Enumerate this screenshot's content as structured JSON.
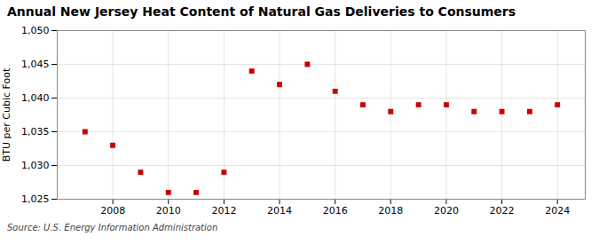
{
  "chart_data": {
    "type": "scatter",
    "title": "Annual New Jersey Heat Content of Natural Gas Deliveries to Consumers",
    "ylabel": "BTU per Cubic Foot",
    "annotations": [
      "Source: U.S. Energy Information Administration"
    ],
    "x": [
      2007,
      2008,
      2009,
      2010,
      2011,
      2012,
      2013,
      2014,
      2015,
      2016,
      2017,
      2018,
      2019,
      2020,
      2021,
      2022,
      2023,
      2024
    ],
    "values": [
      1035,
      1033,
      1029,
      1026,
      1026,
      1029,
      1044,
      1042,
      1045,
      1041,
      1039,
      1038,
      1039,
      1039,
      1038,
      1038,
      1038,
      1039
    ],
    "color": "#cc0000",
    "marker": "square",
    "xlim": [
      2006,
      2025
    ],
    "xticks": [
      2008,
      2010,
      2012,
      2014,
      2016,
      2018,
      2020,
      2022,
      2024
    ],
    "ylim": [
      1025,
      1050
    ],
    "yticks": [
      {
        "value": 1025,
        "label": "1,025"
      },
      {
        "value": 1030,
        "label": "1,030"
      },
      {
        "value": 1035,
        "label": "1,035"
      },
      {
        "value": 1040,
        "label": "1,040"
      },
      {
        "value": 1045,
        "label": "1,045"
      },
      {
        "value": 1050,
        "label": "1,050"
      }
    ],
    "grid": true
  }
}
